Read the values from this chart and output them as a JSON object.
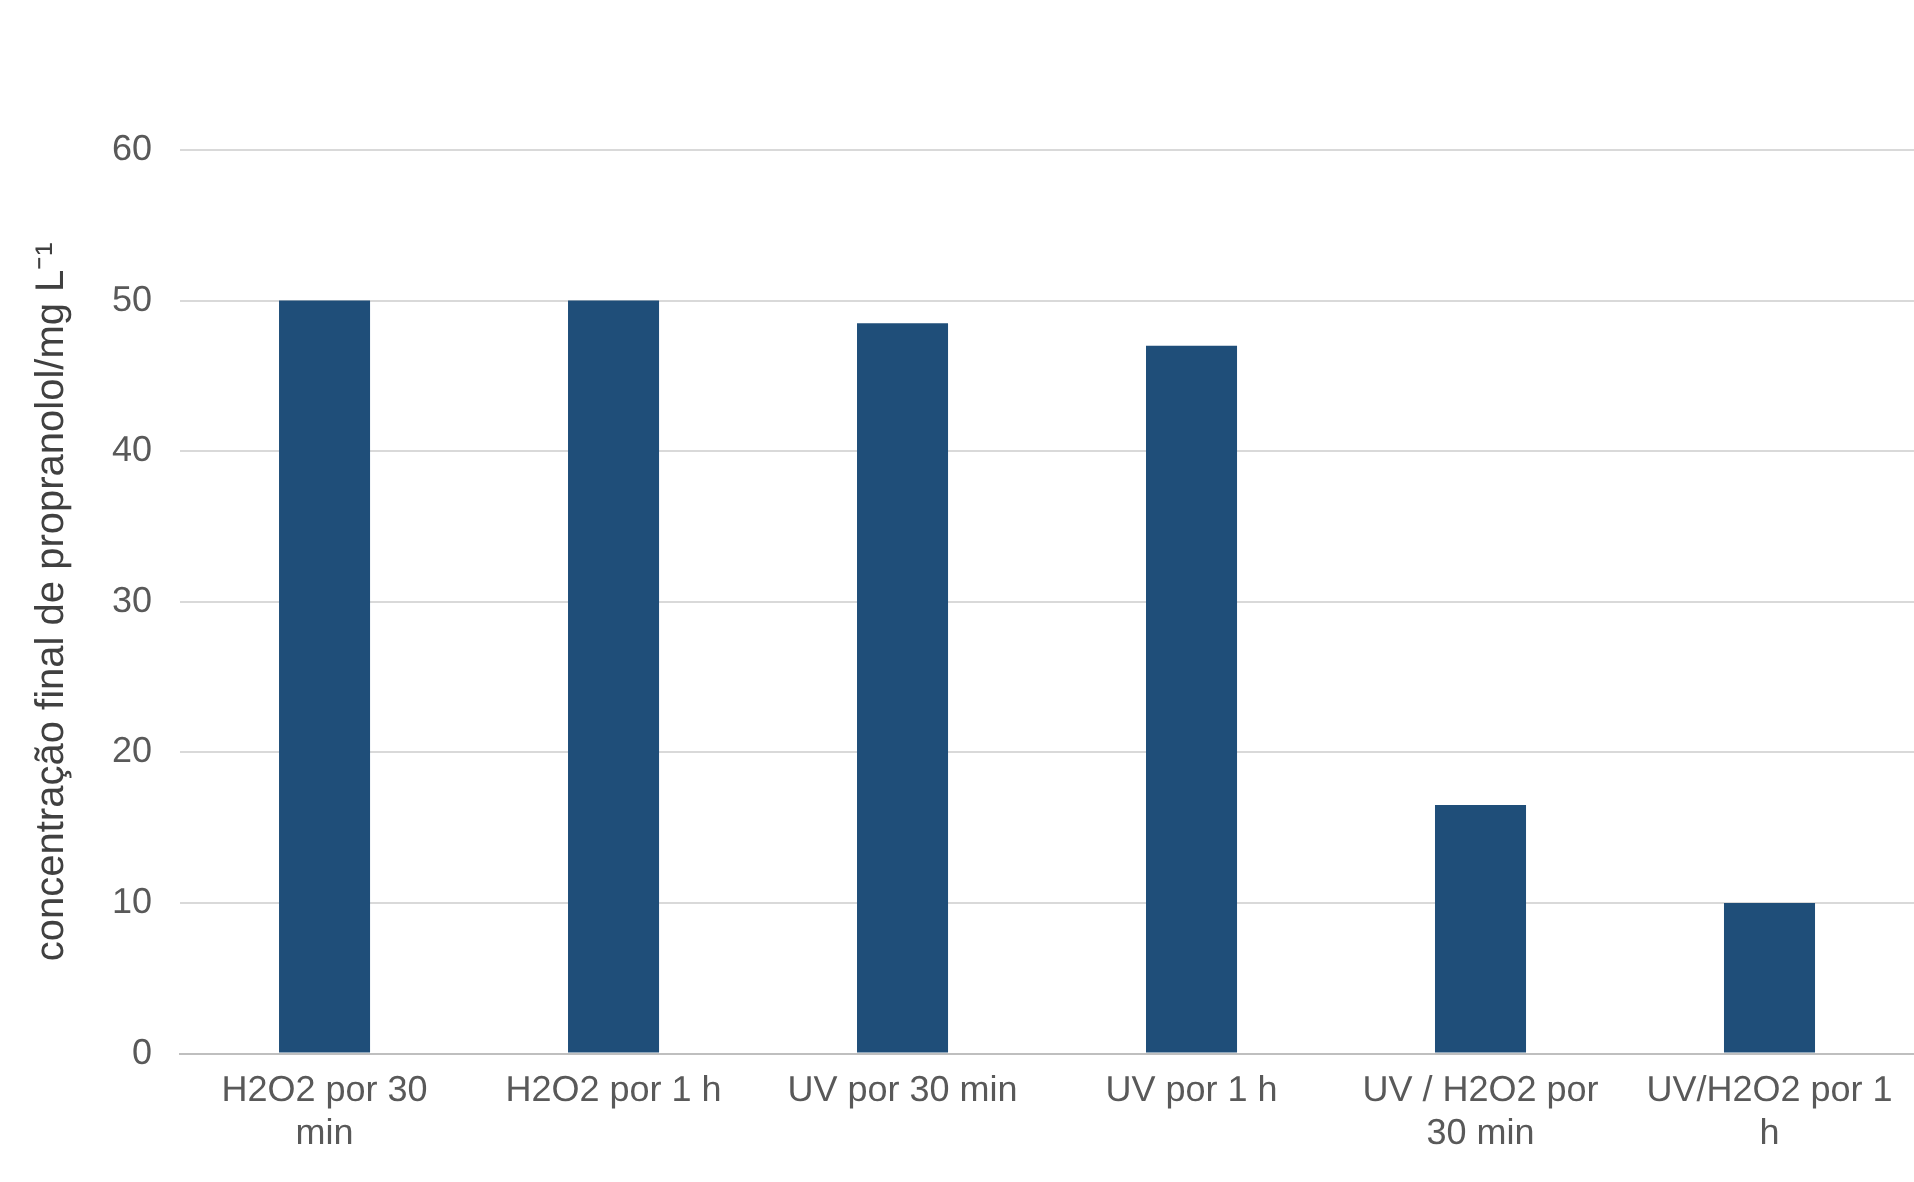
{
  "chart_data": {
    "type": "bar",
    "ylabel": "concentração final de propranolol/mg L⁻¹",
    "categories": [
      "H2O2 por 30 min",
      "H2O2 por 1 h",
      "UV por 30 min",
      "UV por 1 h",
      "UV / H2O2 por 30 min",
      "UV/H2O2 por 1 h"
    ],
    "values": [
      50,
      50,
      48.5,
      47,
      16.5,
      10
    ],
    "color": "#1f4e79",
    "ylim": [
      0,
      60
    ],
    "yticks": [
      0,
      10,
      20,
      30,
      40,
      50,
      60
    ],
    "grid": "y"
  }
}
